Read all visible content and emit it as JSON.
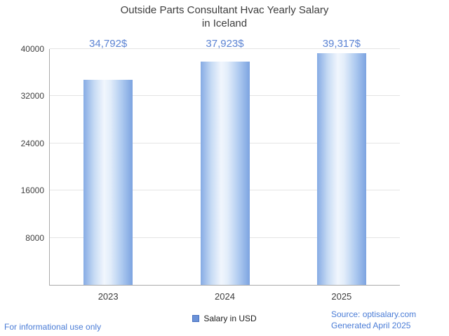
{
  "title": {
    "line1": "Outside Parts Consultant Hvac Yearly Salary",
    "line2": "in Iceland"
  },
  "chart_data": {
    "type": "bar",
    "title": "Outside Parts Consultant Hvac Yearly Salary in Iceland",
    "categories": [
      "2023",
      "2024",
      "2025"
    ],
    "values": [
      34792,
      37923,
      39317
    ],
    "value_labels": [
      "34,792$",
      "37,923$",
      "39,317$"
    ],
    "ylim": [
      0,
      40000
    ],
    "yticks": [
      8000,
      16000,
      24000,
      32000,
      40000
    ],
    "grid": true,
    "legend": [
      "Salary in USD"
    ],
    "legend_position": "bottom"
  },
  "legend": {
    "label": "Salary in USD",
    "marker_color": "#6b92d8"
  },
  "footer": {
    "disclaimer": "For informational use only",
    "source": "Source: optisalary.com",
    "generated": "Generated April 2025"
  },
  "colors": {
    "value_label": "#5b83d3",
    "link_text": "#4a7cd6",
    "title_text": "#3d3d3d",
    "axis_text": "#3f3f3f",
    "gridline": "#e4e4e4",
    "bar_edge": "#7ca3e0",
    "bar_mid": "#f1f6fd"
  }
}
